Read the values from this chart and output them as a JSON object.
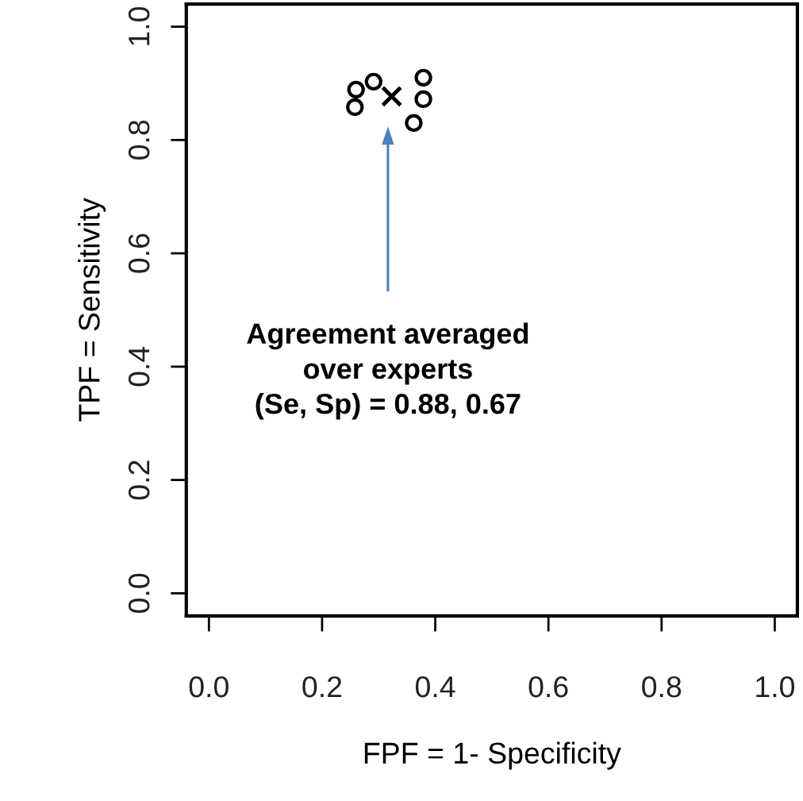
{
  "chart_data": {
    "type": "scatter",
    "xlabel": "FPF = 1- Specificity",
    "ylabel": "TPF = Sensitivity",
    "xlim": [
      -0.04,
      1.04
    ],
    "ylim": [
      -0.04,
      1.04
    ],
    "xticks": [
      {
        "value": 0,
        "label": "0.0"
      },
      0.2,
      0.4,
      0.6,
      0.8,
      {
        "value": 1,
        "label": "1.0"
      }
    ],
    "yticks": [
      {
        "value": 0,
        "label": "0.0"
      },
      0.2,
      0.4,
      0.6,
      0.8,
      {
        "value": 1,
        "label": "1.0"
      }
    ],
    "grid": false,
    "series": [
      {
        "color": "#000000",
        "marker": "circle",
        "x": [
          0.26,
          0.258,
          0.291,
          0.379,
          0.379,
          0.362
        ],
        "values": [
          0.889,
          0.858,
          0.903,
          0.91,
          0.872,
          0.83
        ]
      },
      {
        "color": "#000000",
        "marker": "cross",
        "x": [
          0.323
        ],
        "values": [
          0.877
        ]
      }
    ],
    "annotations": [
      "Agreement averaged\nover experts\n(Se, Sp) = 0.88, 0.67"
    ]
  }
}
